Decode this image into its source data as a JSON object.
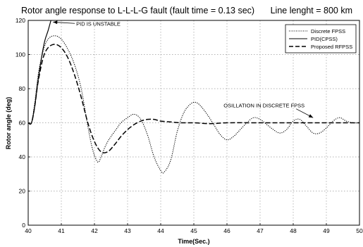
{
  "chart_data": {
    "type": "line",
    "title": "Rotor angle response to L-L-L-G fault (fault time = 0.13 sec)",
    "subtitle": "Line lenght = 800 km",
    "xlabel": "Time(Sec.)",
    "ylabel": "Rotor angle (deg)",
    "xlim": [
      40,
      50
    ],
    "ylim": [
      0,
      120
    ],
    "xticks": [
      "40",
      "41",
      "42",
      "43",
      "44",
      "45",
      "46",
      "47",
      "48",
      "49",
      "50"
    ],
    "yticks": [
      "0",
      "20",
      "40",
      "60",
      "80",
      "100",
      "120"
    ],
    "grid": true,
    "legend_position": "top-right",
    "series": [
      {
        "name": "Discrete FPSS",
        "style": "dotted",
        "x": [
          40.0,
          40.1,
          40.2,
          40.3,
          40.45,
          40.6,
          40.8,
          41.0,
          41.2,
          41.4,
          41.6,
          41.8,
          41.95,
          42.1,
          42.2,
          42.3,
          42.4,
          42.5,
          42.65,
          42.8,
          43.0,
          43.2,
          43.4,
          43.6,
          43.8,
          44.0,
          44.1,
          44.3,
          44.5,
          44.7,
          44.9,
          45.05,
          45.2,
          45.4,
          45.6,
          45.8,
          46.0,
          46.2,
          46.4,
          46.6,
          46.8,
          47.0,
          47.2,
          47.4,
          47.6,
          47.8,
          48.0,
          48.2,
          48.4,
          48.6,
          48.8,
          49.0,
          49.2,
          49.4,
          49.6,
          49.8,
          50.0
        ],
        "y": [
          60,
          60,
          72,
          88,
          102,
          109,
          111,
          109,
          103,
          94,
          80,
          58,
          44,
          37,
          40,
          45,
          49,
          52,
          56,
          60,
          63,
          65,
          62,
          53,
          40,
          32,
          31,
          38,
          55,
          66,
          71,
          72,
          70,
          65,
          59,
          53,
          50,
          52,
          56,
          60,
          63,
          62,
          59,
          56,
          54,
          56,
          61,
          62,
          58,
          54,
          54,
          57,
          61,
          63,
          61,
          60,
          60
        ]
      },
      {
        "name": "PID(CPSS)",
        "style": "solid",
        "x": [
          40.0,
          40.1,
          40.2,
          40.3,
          40.4,
          40.5,
          40.6,
          40.7
        ],
        "y": [
          60,
          60,
          70,
          85,
          98,
          108,
          114,
          121
        ]
      },
      {
        "name": "Proposed RFPSS",
        "style": "dashed",
        "x": [
          40.0,
          40.1,
          40.2,
          40.3,
          40.45,
          40.6,
          40.8,
          41.0,
          41.2,
          41.4,
          41.6,
          41.8,
          42.0,
          42.2,
          42.4,
          42.6,
          42.8,
          43.0,
          43.2,
          43.4,
          43.6,
          43.8,
          44.0,
          44.3,
          44.6,
          45.0,
          45.5,
          46.0,
          47.0,
          48.0,
          49.0,
          50.0
        ],
        "y": [
          60,
          60,
          70,
          84,
          98,
          104,
          106,
          104,
          98,
          88,
          75,
          60,
          49,
          43,
          43,
          47,
          52,
          56,
          59,
          61,
          62,
          62,
          61,
          60.5,
          60,
          60,
          59.5,
          60,
          60,
          60,
          60,
          60
        ]
      }
    ],
    "annotations": [
      {
        "text": "PID IS UNSTABLE",
        "x": 41.45,
        "y": 117,
        "arrow_to": [
          40.75,
          119
        ]
      },
      {
        "text": "OSILLATION IN DISCRETE FPSS",
        "x": 45.9,
        "y": 69,
        "arrow_to": [
          48.6,
          63
        ]
      }
    ]
  }
}
